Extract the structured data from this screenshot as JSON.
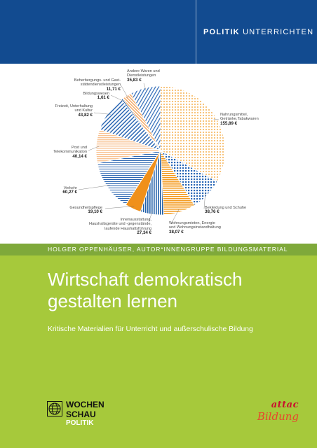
{
  "header": {
    "series_bold": "POLITIK",
    "series_rest": "UNTERRICHTEN"
  },
  "figure": {
    "slices": [
      {
        "label_lines": [
          "Nahrungsmittel,",
          "Getränke,Tabakwaren"
        ],
        "value": 155.89,
        "value_label": "155,89 €",
        "fill": "#f5a85a",
        "pattern": "dots-orange"
      },
      {
        "label_lines": [
          "Bekleidung und Schuhe"
        ],
        "value": 38.76,
        "value_label": "38,76 €",
        "fill": "#2c69b7",
        "pattern": "grid-blue"
      },
      {
        "label_lines": [
          "Wohnungsmieten, Energie",
          "und Wohnungsinstandhaltung"
        ],
        "value": 38.07,
        "value_label": "38,07 €",
        "fill": "#f39a1e",
        "pattern": "hstripe-orange"
      },
      {
        "label_lines": [
          "Innenausstattung,",
          "Haushaltsgeräte und -gegenstände,",
          "laufende Haushaltsführung"
        ],
        "value": 27.34,
        "value_label": "27,34 €",
        "fill": "#1f5ea8",
        "pattern": "vstripe-blue"
      },
      {
        "label_lines": [
          "Gesundheitspflege"
        ],
        "value": 19.1,
        "value_label": "19,10 €",
        "fill": "#f0901a",
        "pattern": "solid-orange"
      },
      {
        "label_lines": [
          "Verkehr"
        ],
        "value": 60.27,
        "value_label": "60,27 €",
        "fill": "#2a64b0",
        "pattern": "fine-blue"
      },
      {
        "label_lines": [
          "Post und",
          "Telekommunikation"
        ],
        "value": 40.14,
        "value_label": "40,14 €",
        "fill": "#f8c393",
        "pattern": "hstripe-peach"
      },
      {
        "label_lines": [
          "Freizeit, Unterhaltung",
          "und Kultur"
        ],
        "value": 43.82,
        "value_label": "43,82 €",
        "fill": "#2d68b4",
        "pattern": "hatch-blue"
      },
      {
        "label_lines": [
          "Bildungswesen"
        ],
        "value": 1.61,
        "value_label": "1,61 €",
        "fill": "#1f5ea8",
        "pattern": "solid-blue"
      },
      {
        "label_lines": [
          "Beherbergungs- und Gast-",
          "stättendienstleistungen"
        ],
        "value": 11.71,
        "value_label": "11,71 €",
        "fill": "#f3a661",
        "pattern": "diag-orange"
      },
      {
        "label_lines": [
          "Andere Waren und",
          "Dienstleistungen"
        ],
        "value": 35.83,
        "value_label": "35,83 €",
        "fill": "#2c69b7",
        "pattern": "wave-blue"
      }
    ]
  },
  "author": "HOLGER OPPENHÄUSER, AUTOR*INNENGRUPPE BILDUNGSMATERIAL",
  "title_lines": [
    "Wirtschaft demokratisch",
    "gestalten lernen"
  ],
  "subtitle": "Kritische Materialien für Unterricht und außerschulische Bildung",
  "publisher": {
    "line1": "WOCHEN",
    "line2": "SCHAU",
    "line3": "POLITIK",
    "icon": "globe-icon"
  },
  "brand": {
    "line1": "attac",
    "line2": "Bildung"
  },
  "colors": {
    "header_blue": "#124b90",
    "author_green": "#7fa93a",
    "cover_green": "#a6c93b",
    "brand_red": "#c8102e"
  }
}
